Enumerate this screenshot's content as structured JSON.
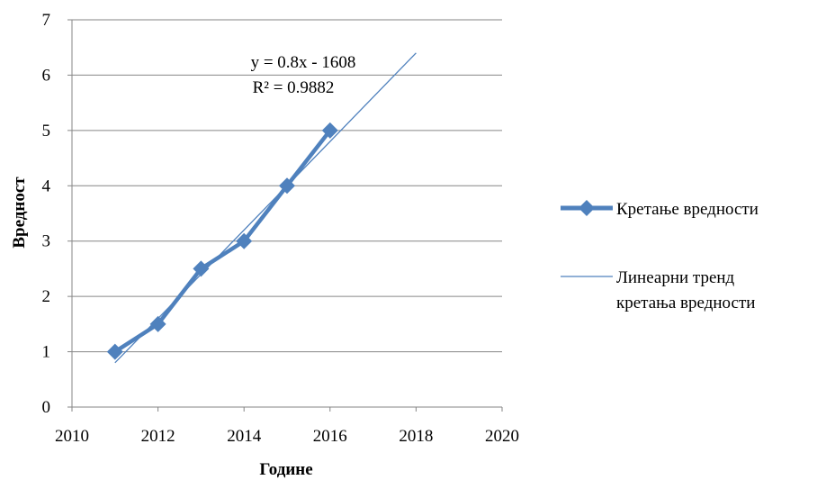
{
  "chart_data": {
    "type": "scatter",
    "xlabel": "Године",
    "ylabel": "Вредност",
    "xlim": [
      2010,
      2020
    ],
    "ylim": [
      0,
      7
    ],
    "xticks": [
      2010,
      2012,
      2014,
      2016,
      2018,
      2020
    ],
    "yticks": [
      0,
      1,
      2,
      3,
      4,
      5,
      6,
      7
    ],
    "grid": "horizontal",
    "legend_position": "right",
    "series": [
      {
        "name": "Кретање вредности",
        "color": "#4F81BD",
        "marker": "diamond",
        "x": [
          2011,
          2012,
          2013,
          2014,
          2015,
          2016
        ],
        "y": [
          1,
          1.5,
          2.5,
          3,
          4,
          5
        ]
      }
    ],
    "trendline": {
      "name": "Линеарни тренд кретања вредности",
      "name_lines": [
        "Линеарни тренд",
        "кретања вредности"
      ],
      "color": "#4F81BD",
      "x": [
        2011,
        2018
      ],
      "y": [
        0.8,
        6.4
      ],
      "equation": "y = 0.8x - 1608",
      "r_squared": "R² = 0.9882"
    }
  }
}
